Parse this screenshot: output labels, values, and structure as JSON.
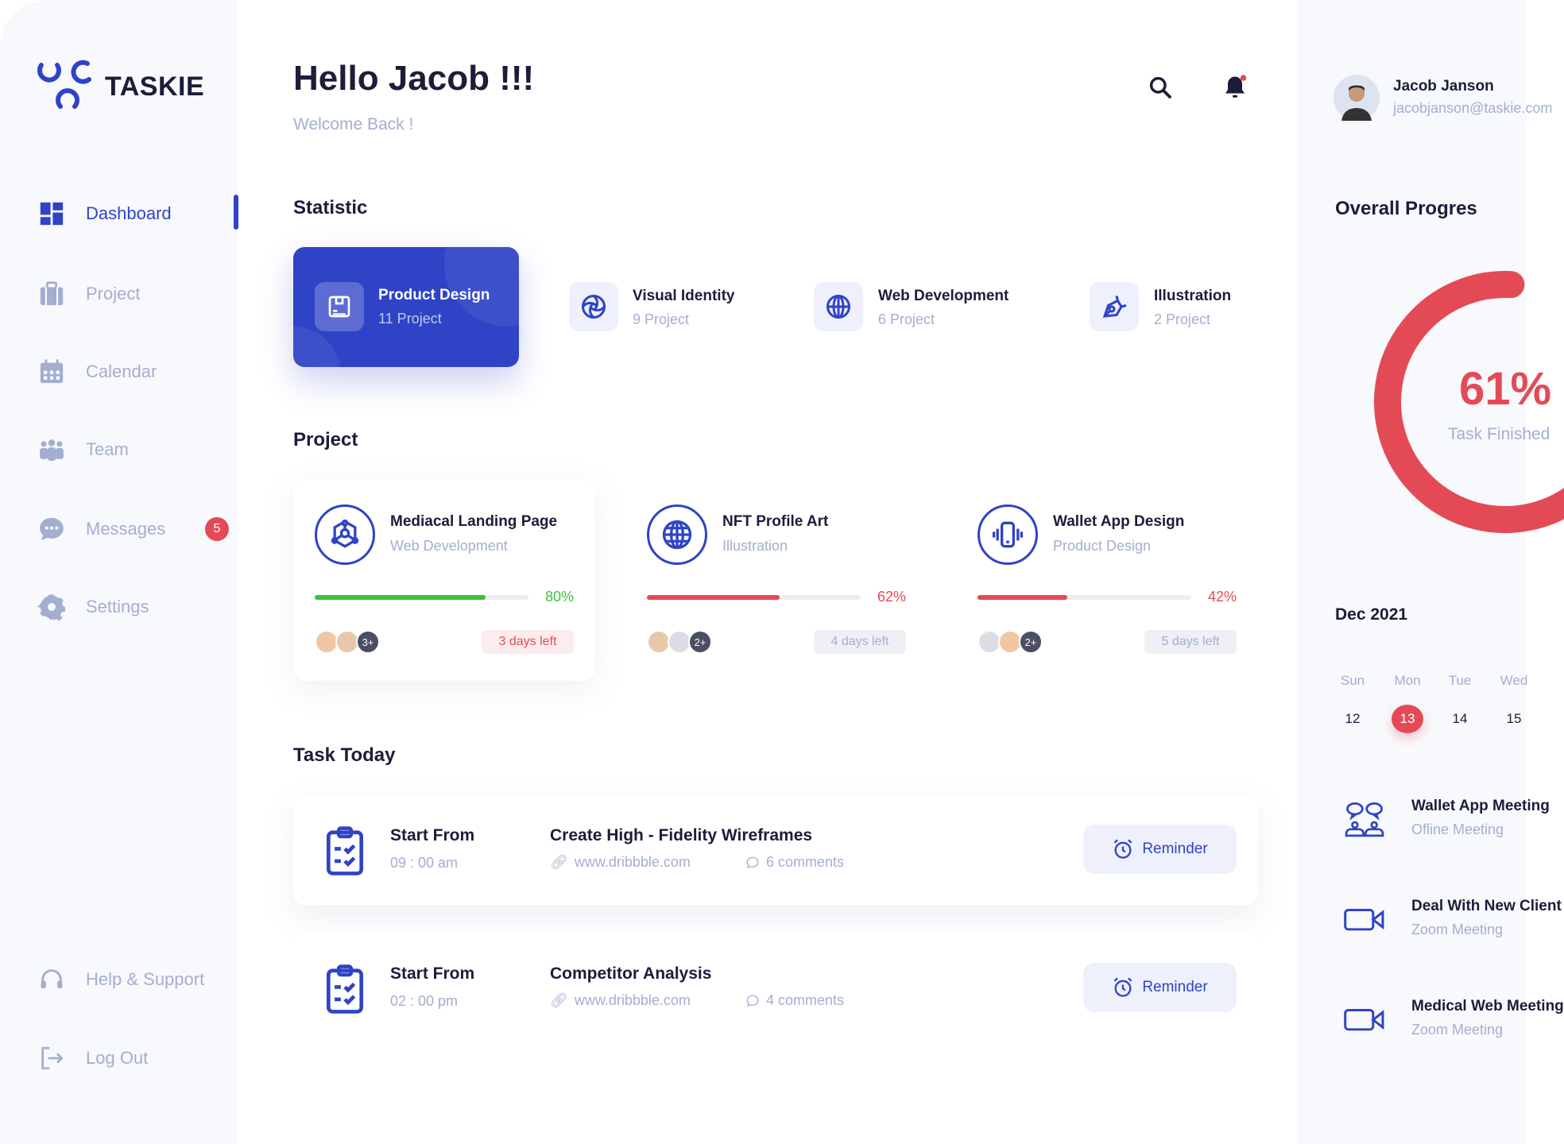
{
  "app": {
    "name": "TASKIE"
  },
  "colors": {
    "primary": "#2f43c6",
    "danger": "#e44a56",
    "success": "#3cc13b",
    "muted": "#a3aed0"
  },
  "sidebar": {
    "items": [
      {
        "label": "Dashboard",
        "icon": "dashboard-icon",
        "active": true
      },
      {
        "label": "Project",
        "icon": "briefcase-icon"
      },
      {
        "label": "Calendar",
        "icon": "calendar-icon"
      },
      {
        "label": "Team",
        "icon": "team-icon"
      },
      {
        "label": "Messages",
        "icon": "chat-icon",
        "badge": "5"
      },
      {
        "label": "Settings",
        "icon": "gear-icon"
      }
    ],
    "bottom": [
      {
        "label": "Help & Support",
        "icon": "headset-icon"
      },
      {
        "label": "Log Out",
        "icon": "logout-icon"
      }
    ]
  },
  "header": {
    "greeting": "Hello Jacob !!!",
    "subtitle": "Welcome Back !"
  },
  "user": {
    "name": "Jacob Janson",
    "email": "jacobjanson@taskie.com"
  },
  "statistic": {
    "title": "Statistic",
    "items": [
      {
        "title": "Product Design",
        "count": "11 Project",
        "icon": "box-icon",
        "active": true
      },
      {
        "title": "Visual Identity",
        "count": "9 Project",
        "icon": "spiral-icon"
      },
      {
        "title": "Web Development",
        "count": "6 Project",
        "icon": "globe-icon"
      },
      {
        "title": "Illustration",
        "count": "2 Project",
        "icon": "pen-tool-icon"
      }
    ]
  },
  "projects": {
    "title": "Project",
    "items": [
      {
        "title": "Mediacal Landing Page",
        "category": "Web Development",
        "progress": 80,
        "progress_label": "80%",
        "more": "3+",
        "days_left": "3 days left",
        "color": "#3cc13b",
        "icon": "network-icon"
      },
      {
        "title": "NFT Profile Art",
        "category": "Illustration",
        "progress": 62,
        "progress_label": "62%",
        "more": "2+",
        "days_left": "4 days left",
        "color": "#e44a56",
        "icon": "globe-icon"
      },
      {
        "title": "Wallet App Design",
        "category": "Product Design",
        "progress": 42,
        "progress_label": "42%",
        "more": "2+",
        "days_left": "5 days left",
        "color": "#e44a56",
        "icon": "phone-vibrate-icon"
      }
    ]
  },
  "tasks": {
    "title": "Task Today",
    "items": [
      {
        "start_label": "Start From",
        "time": "09 : 00 am",
        "title": "Create High - Fidelity Wireframes",
        "link": "www.dribbble.com",
        "comments": "6 comments",
        "button": "Reminder"
      },
      {
        "start_label": "Start From",
        "time": "02 : 00 pm",
        "title": "Competitor Analysis",
        "link": "www.dribbble.com",
        "comments": "4 comments",
        "button": "Reminder"
      }
    ]
  },
  "overall": {
    "title": "Overall Progres",
    "value": 61,
    "value_label": "61%",
    "caption": "Task Finished"
  },
  "calendar": {
    "month": "Dec 2021",
    "weekdays": [
      "Sun",
      "Mon",
      "Tue",
      "Wed"
    ],
    "dates": [
      "12",
      "13",
      "14",
      "15"
    ],
    "selected": "13"
  },
  "meetings": [
    {
      "title": "Wallet App Meeting",
      "type": "Ofline Meeting",
      "icon": "people-chat-icon"
    },
    {
      "title": "Deal With New Client",
      "type": "Zoom Meeting",
      "icon": "video-camera-icon"
    },
    {
      "title": "Medical Web Meeting",
      "type": "Zoom Meeting",
      "icon": "video-camera-icon"
    }
  ]
}
